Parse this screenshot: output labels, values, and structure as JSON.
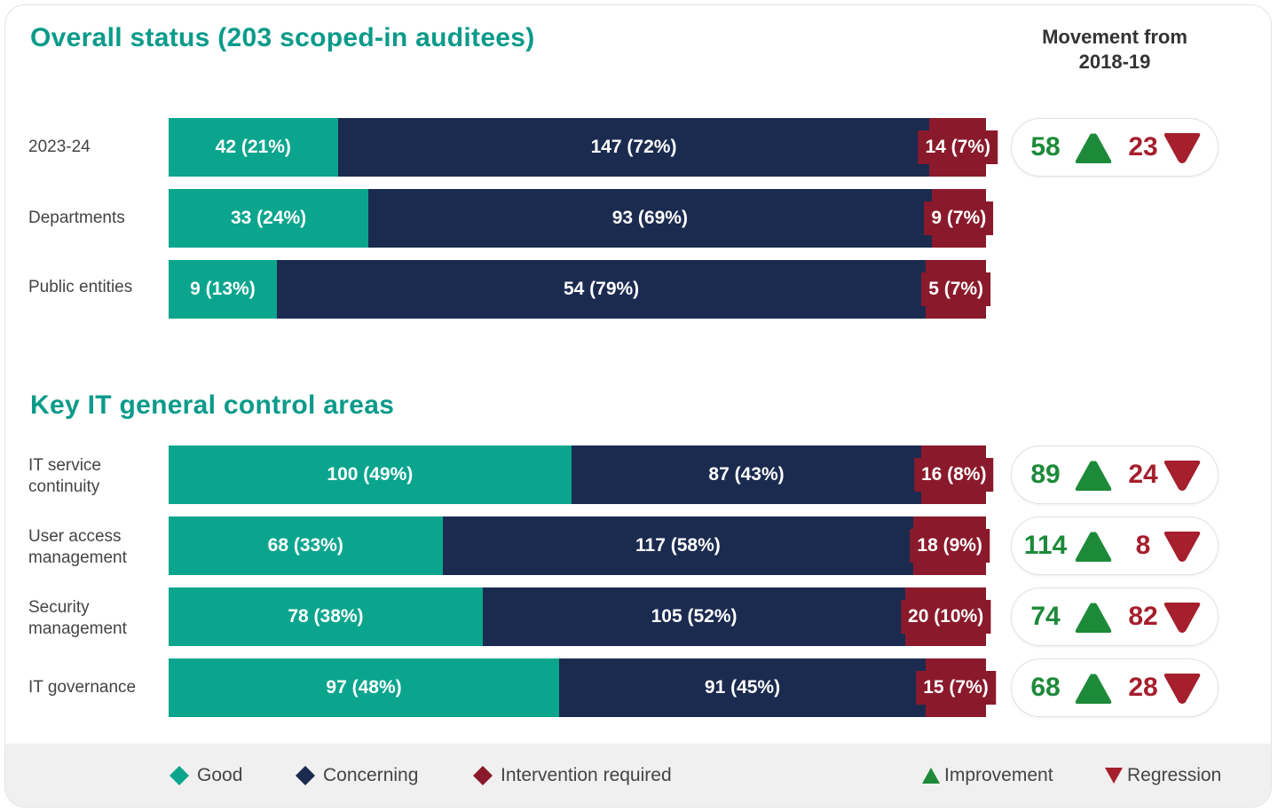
{
  "chart_data": {
    "type": "bar",
    "orientation": "horizontal-stacked",
    "colors": {
      "good": "#0ba58e",
      "concerning": "#1b2b50",
      "intervention": "#8a1a2b",
      "improvement": "#1d8a3a",
      "regression": "#a51f2d"
    },
    "movement_header": [
      "Movement from",
      "2018-19"
    ],
    "legend": {
      "good": "Good",
      "concerning": "Concerning",
      "intervention": "Intervention required",
      "improvement": "Improvement",
      "regression": "Regression"
    },
    "sections": [
      {
        "title": "Overall status  (203 scoped-in auditees)",
        "rows": [
          {
            "label": "2023-24",
            "good": 42,
            "good_label": "42 (21%)",
            "concerning": 147,
            "concerning_label": "147 (72%)",
            "intervention": 14,
            "intervention_label": "14 (7%)",
            "improvement": "58",
            "regression": "23"
          },
          {
            "label": "Departments",
            "good": 33,
            "good_label": "33 (24%)",
            "concerning": 93,
            "concerning_label": "93 (69%)",
            "intervention": 9,
            "intervention_label": "9 (7%)"
          },
          {
            "label": "Public entities",
            "good": 9,
            "good_label": "9 (13%)",
            "concerning": 54,
            "concerning_label": "54 (79%)",
            "intervention": 5,
            "intervention_label": "5 (7%)"
          }
        ]
      },
      {
        "title": "Key IT general control areas",
        "rows": [
          {
            "label": "IT service continuity",
            "good": 100,
            "good_label": "100 (49%)",
            "concerning": 87,
            "concerning_label": "87 (43%)",
            "intervention": 16,
            "intervention_label": "16 (8%)",
            "improvement": "89",
            "regression": "24"
          },
          {
            "label": "User access management",
            "good": 68,
            "good_label": "68 (33%)",
            "concerning": 117,
            "concerning_label": "117 (58%)",
            "intervention": 18,
            "intervention_label": "18 (9%)",
            "improvement": "114",
            "regression": "8"
          },
          {
            "label": "Security management",
            "good": 78,
            "good_label": "78 (38%)",
            "concerning": 105,
            "concerning_label": "105 (52%)",
            "intervention": 20,
            "intervention_label": "20 (10%)",
            "improvement": "74",
            "regression": "82"
          },
          {
            "label": "IT governance",
            "good": 97,
            "good_label": "97 (48%)",
            "concerning": 91,
            "concerning_label": "91 (45%)",
            "intervention": 15,
            "intervention_label": "15 (7%)",
            "improvement": "68",
            "regression": "28"
          }
        ]
      }
    ]
  }
}
